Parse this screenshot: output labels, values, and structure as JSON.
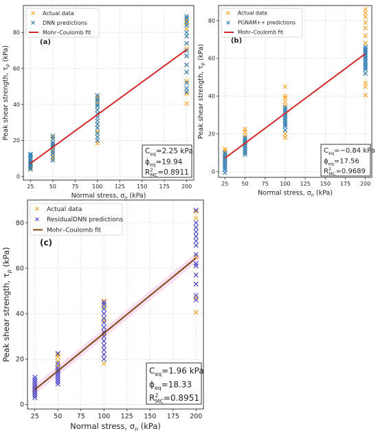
{
  "chart_data": [
    {
      "type": "scatter",
      "panel_label": "(a)",
      "xlabel": "Normal stress, σn (kPa)",
      "ylabel": "Peak shear strength, τp (kPa)",
      "xlim": [
        17,
        208
      ],
      "ylim": [
        -2,
        95
      ],
      "xticks": [
        25,
        50,
        75,
        100,
        125,
        150,
        175,
        200
      ],
      "yticks": [
        0,
        20,
        40,
        60,
        80
      ],
      "grid": true,
      "legend_position": "top-left",
      "legend": [
        "Actual data",
        "DNN predictions",
        "Mohr–Coulomb fit"
      ],
      "stats": {
        "c": "C",
        "c_sub": "eq",
        "c_val": "=2.25 kPa",
        "phi": "ϕ",
        "phi_sub": "eq",
        "phi_val": "=19.94",
        "r": "R",
        "r_sup": "2",
        "r_sub": "MC",
        "r_val": "=0.8911"
      },
      "fit": {
        "color": "#d62728",
        "x": [
          25,
          200
        ],
        "y": [
          7.3,
          70.5
        ]
      },
      "series": [
        {
          "name": "Actual data",
          "color": "#ff9f1c",
          "x": [
            25,
            25,
            25,
            25,
            25,
            25,
            25,
            25,
            25,
            25,
            50,
            50,
            50,
            50,
            50,
            50,
            50,
            50,
            50,
            50,
            100,
            100,
            100,
            100,
            100,
            100,
            100,
            100,
            100,
            100,
            100,
            100,
            100,
            100,
            100,
            200,
            200,
            200,
            200,
            200,
            200,
            200,
            200,
            200,
            200,
            200,
            200,
            200,
            200
          ],
          "y": [
            5,
            6,
            7,
            8,
            9,
            10,
            11,
            12,
            4.5,
            7.5,
            10,
            12,
            14,
            15,
            16,
            17,
            18,
            19,
            21,
            22,
            18.5,
            20,
            22,
            25,
            27,
            29,
            31,
            33,
            35,
            37,
            39,
            41,
            43,
            44,
            45,
            40.5,
            46,
            49,
            53,
            58,
            62,
            67,
            71,
            74,
            78,
            82,
            85,
            87,
            89
          ]
        },
        {
          "name": "DNN predictions",
          "color": "#1f77b4",
          "x": [
            25,
            25,
            25,
            25,
            25,
            25,
            25,
            25,
            25,
            25,
            50,
            50,
            50,
            50,
            50,
            50,
            50,
            50,
            50,
            50,
            100,
            100,
            100,
            100,
            100,
            100,
            100,
            100,
            100,
            100,
            100,
            100,
            100,
            100,
            200,
            200,
            200,
            200,
            200,
            200,
            200,
            200,
            200,
            200,
            200,
            200,
            200,
            200
          ],
          "y": [
            4,
            5,
            6,
            7,
            8,
            9,
            10,
            11,
            12,
            12.5,
            9,
            11,
            13,
            14,
            16,
            17,
            18,
            19,
            21,
            22.5,
            20,
            22,
            24,
            27,
            29,
            31,
            33,
            35,
            37,
            39,
            40,
            42,
            43,
            45,
            47,
            49,
            52,
            58,
            62,
            67,
            70,
            74,
            78,
            80,
            84,
            86,
            88,
            89
          ]
        }
      ]
    },
    {
      "type": "scatter",
      "panel_label": "(b)",
      "xlabel": "Normal stress, σn (kPa)",
      "ylabel": "Peak shear strength, τp (kPa)",
      "xlim": [
        17,
        208
      ],
      "ylim": [
        -3,
        88
      ],
      "xticks": [
        25,
        50,
        75,
        100,
        125,
        150,
        175,
        200
      ],
      "yticks": [
        0,
        20,
        40,
        60,
        80
      ],
      "grid": true,
      "legend_position": "top-left",
      "legend": [
        "Actual data",
        "PGNAM++ predictions",
        "Mohr–Coulomb fit"
      ],
      "stats": {
        "c": "C",
        "c_sub": "eq",
        "c_val": "=−0.84 kPa",
        "phi": "ϕ",
        "phi_sub": "eq",
        "phi_val": "=17.56",
        "r": "R",
        "r_sup": "2",
        "r_sub": "MC",
        "r_val": "=0.9689"
      },
      "fit": {
        "color": "#d62728",
        "x": [
          25,
          200
        ],
        "y": [
          7.2,
          62.5
        ]
      },
      "series": [
        {
          "name": "Actual data",
          "color": "#ff9f1c",
          "x": [
            25,
            25,
            25,
            25,
            25,
            25,
            25,
            25,
            25,
            50,
            50,
            50,
            50,
            50,
            50,
            50,
            50,
            50,
            100,
            100,
            100,
            100,
            100,
            100,
            100,
            100,
            100,
            100,
            100,
            100,
            100,
            200,
            200,
            200,
            200,
            200,
            200,
            200,
            200,
            200,
            200,
            200,
            200,
            200,
            200
          ],
          "y": [
            4,
            5,
            6,
            7,
            8,
            9,
            10,
            11,
            12,
            10,
            12,
            14,
            15,
            16,
            17,
            19,
            21,
            22.5,
            18,
            20,
            22,
            25,
            27,
            29,
            31,
            33,
            35,
            37,
            39,
            40,
            45,
            40.5,
            45,
            47,
            52,
            56,
            60,
            64,
            68,
            72,
            76,
            79,
            82,
            84,
            86
          ]
        },
        {
          "name": "PGNAM++ predictions",
          "color": "#1f77b4",
          "x": [
            25,
            25,
            25,
            25,
            25,
            25,
            25,
            25,
            25,
            25,
            25,
            50,
            50,
            50,
            50,
            50,
            50,
            50,
            50,
            50,
            50,
            100,
            100,
            100,
            100,
            100,
            100,
            100,
            100,
            100,
            100,
            100,
            100,
            200,
            200,
            200,
            200,
            200,
            200,
            200,
            200,
            200,
            200,
            200,
            200,
            200,
            200
          ],
          "y": [
            -0.5,
            1,
            2,
            3,
            4,
            5,
            6,
            7,
            8,
            9,
            10,
            9,
            10,
            11,
            12,
            13,
            14,
            15,
            16,
            17,
            18,
            22,
            24,
            25,
            26,
            27,
            28,
            29,
            30,
            31,
            32,
            33,
            34,
            52,
            54,
            55,
            56,
            57,
            58,
            59,
            60,
            61,
            62,
            63,
            64,
            65,
            66
          ]
        }
      ]
    },
    {
      "type": "scatter",
      "panel_label": "(c)",
      "xlabel": "Normal stress, σn (kPa)",
      "ylabel": "Peak shear strength, τp (kPa)",
      "xlim": [
        17,
        208
      ],
      "ylim": [
        -2,
        90
      ],
      "xticks": [
        25,
        50,
        75,
        100,
        125,
        150,
        175,
        200
      ],
      "yticks": [
        0,
        20,
        40,
        60,
        80
      ],
      "grid": true,
      "legend_position": "top-left",
      "legend": [
        "Actual data",
        "ResidualDNN predictions",
        "Mohr–Coulomb fit"
      ],
      "stats": {
        "c": "C",
        "c_sub": "eq",
        "c_val": "=1.96 kPa",
        "phi": "ϕ",
        "phi_sub": "eq",
        "phi_val": "=18.33",
        "r": "R",
        "r_sup": "2",
        "r_sub": "MC",
        "r_val": "=0.8951"
      },
      "fit": {
        "color": "#7a4a10",
        "x": [
          25,
          200
        ],
        "y": [
          6.5,
          64.5
        ]
      },
      "series": [
        {
          "name": "Actual data",
          "color": "#e8a317",
          "x": [
            25,
            25,
            25,
            25,
            25,
            25,
            25,
            25,
            50,
            50,
            50,
            50,
            50,
            50,
            50,
            50,
            100,
            100,
            100,
            100,
            100,
            100,
            100,
            100,
            100,
            100,
            100,
            100,
            200,
            200,
            200,
            200,
            200,
            200,
            200,
            200,
            200,
            200,
            200
          ],
          "y": [
            3,
            4,
            5,
            6,
            7,
            8,
            9,
            10,
            9,
            11,
            13,
            15,
            17,
            19,
            21,
            22,
            18,
            20,
            22,
            24,
            26,
            28,
            31,
            34,
            37,
            40,
            43,
            45.5,
            40.5,
            47,
            53,
            57,
            61,
            65,
            70,
            74,
            78,
            82,
            85
          ]
        },
        {
          "name": "ResidualDNN predictions",
          "color": "#3b3bd1",
          "x": [
            25,
            25,
            25,
            25,
            25,
            25,
            25,
            25,
            25,
            25,
            50,
            50,
            50,
            50,
            50,
            50,
            50,
            50,
            50,
            50,
            100,
            100,
            100,
            100,
            100,
            100,
            100,
            100,
            100,
            100,
            100,
            100,
            100,
            100,
            200,
            200,
            200,
            200,
            200,
            200,
            200,
            200,
            200,
            200,
            200,
            200,
            200,
            200
          ],
          "y": [
            3,
            4,
            5,
            6,
            7,
            8,
            9,
            10,
            11,
            12,
            9,
            10,
            11,
            12,
            13,
            14,
            15,
            16,
            18,
            22.5,
            20,
            22,
            24,
            26,
            28,
            30,
            32,
            34,
            36,
            38,
            40,
            42,
            44,
            45,
            46,
            48,
            53,
            57,
            61,
            62,
            66,
            70,
            72,
            74,
            76,
            78,
            80,
            85.5
          ]
        }
      ]
    }
  ]
}
